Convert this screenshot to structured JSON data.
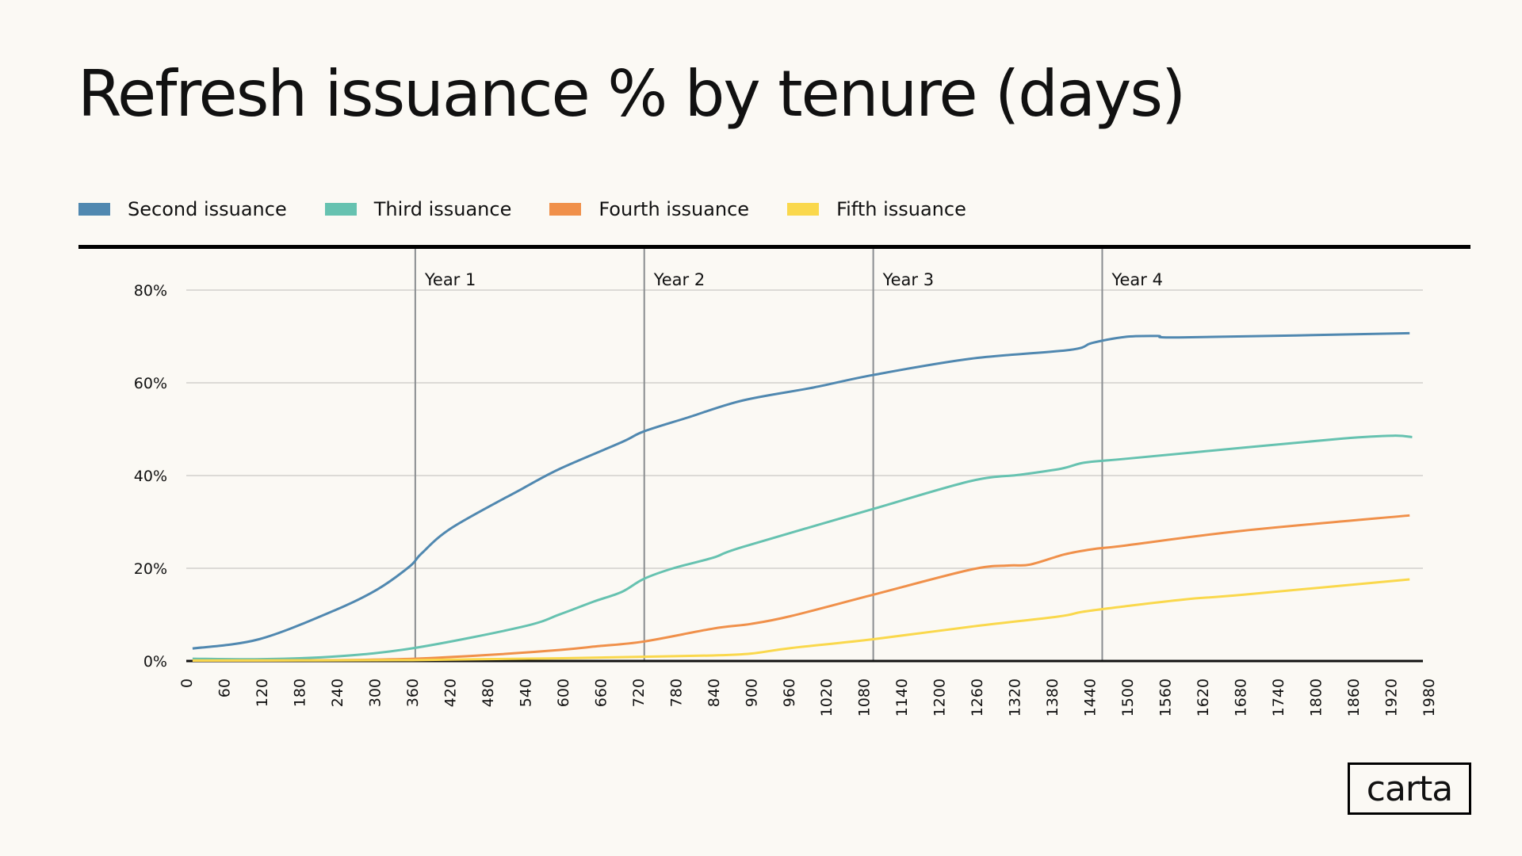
{
  "chart_data": {
    "type": "line",
    "title": "Refresh issuance % by tenure (days)",
    "xlabel": "",
    "ylabel": "",
    "xlim": [
      0,
      1980
    ],
    "ylim": [
      0,
      80
    ],
    "x_ticks": [
      0,
      60,
      120,
      180,
      240,
      300,
      360,
      420,
      480,
      540,
      600,
      660,
      720,
      780,
      840,
      900,
      960,
      1020,
      1080,
      1140,
      1200,
      1260,
      1320,
      1380,
      1440,
      1500,
      1560,
      1620,
      1680,
      1740,
      1800,
      1860,
      1920,
      1980
    ],
    "y_ticks": [
      0,
      20,
      40,
      60,
      80
    ],
    "y_tick_format": "%",
    "grid": "horizontal",
    "legend": "top-left",
    "annotations": [
      {
        "label": "Year 1",
        "x": 365
      },
      {
        "label": "Year 2",
        "x": 730
      },
      {
        "label": "Year 3",
        "x": 1095
      },
      {
        "label": "Year 4",
        "x": 1460
      }
    ],
    "series": [
      {
        "name": "Second issuance",
        "color": "#5088b0",
        "x": [
          10,
          116,
          236,
          304,
          356,
          375,
          424,
          536,
          596,
          694,
          729,
          799,
          887,
          1000,
          1095,
          1250,
          1408,
          1444,
          1496,
          1548,
          1592,
          1950
        ],
        "y": [
          2.7,
          4.7,
          10.9,
          15.4,
          20.4,
          23.2,
          28.8,
          37.2,
          41.5,
          47.2,
          49.5,
          52.5,
          56.2,
          59,
          61.7,
          65.2,
          67.1,
          68.6,
          69.9,
          70.1,
          69.8,
          70.7
        ]
      },
      {
        "name": "Third issuance",
        "color": "#66c2b0",
        "x": [
          10,
          120,
          240,
          363,
          536,
          596,
          649,
          694,
          729,
          776,
          840,
          887,
          1095,
          1250,
          1330,
          1395,
          1432,
          1496,
          1684,
          1844,
          1924,
          1954
        ],
        "y": [
          0.5,
          0.4,
          1.0,
          2.8,
          7.4,
          10.1,
          12.8,
          14.9,
          17.7,
          20,
          22.3,
          24.6,
          32.8,
          38.8,
          40.2,
          41.5,
          42.8,
          43.6,
          46,
          48,
          48.6,
          48.3
        ],
        "color_note": ""
      },
      {
        "name": "Fourth issuance",
        "color": "#f0904a",
        "x": [
          10,
          240,
          363,
          480,
          596,
          656,
          729,
          840,
          900,
          964,
          1095,
          1250,
          1310,
          1345,
          1400,
          1444,
          1496,
          1684,
          1950
        ],
        "y": [
          0.1,
          0.2,
          0.5,
          1.3,
          2.4,
          3.2,
          4.2,
          7.0,
          8.0,
          9.7,
          14.3,
          19.7,
          20.6,
          20.8,
          23.0,
          24.1,
          24.9,
          28.1,
          31.4
        ]
      },
      {
        "name": "Fifth issuance",
        "color": "#fad84c",
        "x": [
          10,
          360,
          600,
          720,
          840,
          900,
          964,
          1095,
          1250,
          1390,
          1428,
          1496,
          1592,
          1684,
          1950
        ],
        "y": [
          0.1,
          0.2,
          0.6,
          0.9,
          1.2,
          1.6,
          2.8,
          4.7,
          7.4,
          9.6,
          10.6,
          11.8,
          13.3,
          14.3,
          17.6
        ]
      }
    ]
  },
  "logo": "carta"
}
